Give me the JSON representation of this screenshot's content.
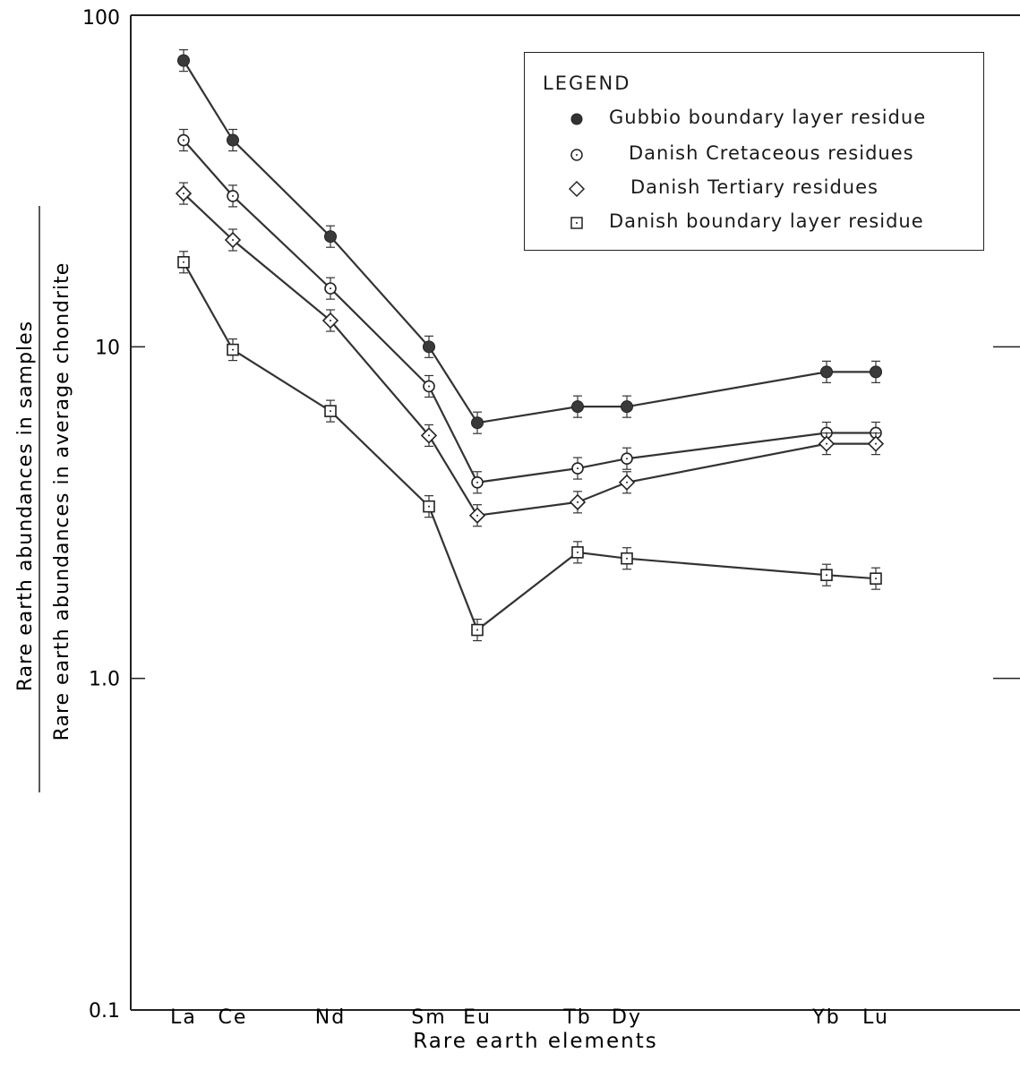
{
  "chart_data": {
    "type": "line",
    "scale": "log",
    "ylim": [
      0.1,
      100
    ],
    "xlabel": "Rare earth elements",
    "ylabel_numerator": "Rare earth abundances in samples",
    "ylabel_denominator": "Rare earth abundances in average chondrite",
    "categories": [
      "La",
      "Ce",
      "Nd",
      "Sm",
      "Eu",
      "Tb",
      "Dy",
      "Yb",
      "Lu"
    ],
    "y_ticks": [
      "100",
      "10",
      "1.0",
      "0.1"
    ],
    "legend_title": "LEGEND",
    "legend_position": "top-right",
    "series": [
      {
        "name": "Gubbio boundary layer residue",
        "marker": "filled-circle",
        "segments": [
          {
            "x": [
              "La",
              "Ce",
              "Nd",
              "Sm",
              "Eu"
            ],
            "values": [
              73,
              42,
              21.5,
              10,
              5.9
            ]
          },
          {
            "x": [
              "Eu",
              "Tb",
              "Dy",
              "Yb",
              "Lu"
            ],
            "values": [
              5.9,
              6.6,
              6.6,
              8.4,
              8.4
            ]
          }
        ]
      },
      {
        "name": "Danish Cretaceous residues",
        "marker": "open-circle",
        "segments": [
          {
            "x": [
              "La",
              "Ce",
              "Nd",
              "Sm",
              "Eu",
              "Tb",
              "Dy",
              "Yb",
              "Lu"
            ],
            "values": [
              42,
              28.5,
              15,
              7.6,
              3.9,
              4.3,
              4.6,
              5.5,
              5.5
            ]
          }
        ]
      },
      {
        "name": "Danish Tertiary residues",
        "marker": "open-diamond",
        "segments": [
          {
            "x": [
              "La",
              "Ce",
              "Nd",
              "Sm",
              "Eu",
              "Tb",
              "Dy",
              "Yb",
              "Lu"
            ],
            "values": [
              29,
              21,
              12,
              5.4,
              3.1,
              3.4,
              3.9,
              5.1,
              5.1
            ]
          }
        ]
      },
      {
        "name": "Danish boundary layer residue",
        "marker": "open-square",
        "segments": [
          {
            "x": [
              "La",
              "Ce",
              "Nd",
              "Sm",
              "Eu",
              "Tb",
              "Dy",
              "Yb",
              "Lu"
            ],
            "values": [
              18,
              9.8,
              6.4,
              3.3,
              1.4,
              2.4,
              2.3,
              2.05,
              2.0
            ]
          }
        ]
      }
    ]
  }
}
